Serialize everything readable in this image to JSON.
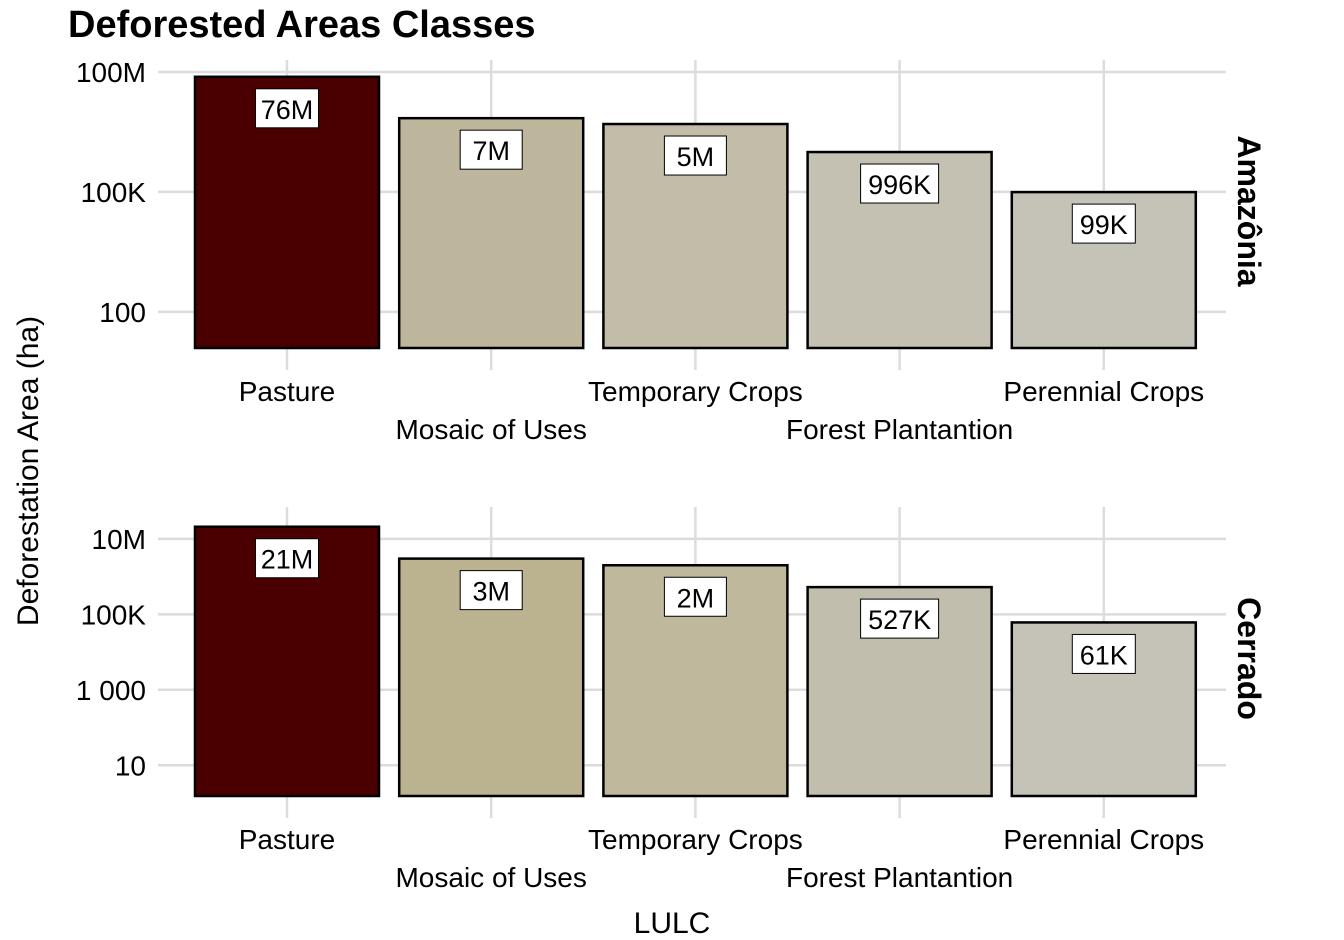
{
  "chart_data": {
    "type": "bar",
    "title": "Deforested Areas Classes",
    "xlabel": "LULC",
    "ylabel": "Deforestation Area (ha)",
    "y_scale": "log10",
    "grid": true,
    "legend": "none",
    "categories": [
      "Pasture",
      "Mosaic of Uses",
      "Temporary Crops",
      "Forest Plantantion",
      "Perennial Crops"
    ],
    "panels": [
      {
        "name": "Amazônia",
        "values": [
          76000000,
          7000000,
          5000000,
          996000,
          99000
        ],
        "data_labels": [
          "76M",
          "7M",
          "5M",
          "996K",
          "99K"
        ],
        "colors": [
          "#4a0000",
          "#bdb69c",
          "#c2bda8",
          "#c4c1b2",
          "#c5c3b8"
        ],
        "y_ticks": [
          100,
          100000,
          100000000
        ],
        "y_tick_labels": [
          "100",
          "100K",
          "100M"
        ],
        "ylim": [
          3.5,
          200000000
        ]
      },
      {
        "name": "Cerrado",
        "values": [
          21000000,
          3000000,
          2000000,
          527000,
          61000
        ],
        "data_labels": [
          "21M",
          "3M",
          "2M",
          "527K",
          "61K"
        ],
        "colors": [
          "#4a0000",
          "#bbb290",
          "#bfb89c",
          "#c2beae",
          "#c5c3b8"
        ],
        "y_ticks": [
          10,
          1000,
          100000,
          10000000
        ],
        "y_tick_labels": [
          "10",
          "1 000",
          "100K",
          "10M"
        ],
        "ylim": [
          0.4,
          70000000
        ]
      }
    ]
  }
}
